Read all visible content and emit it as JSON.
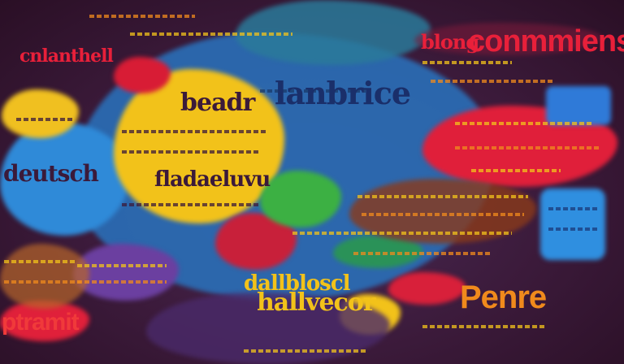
{
  "words": {
    "top_right": "conmmiens",
    "left_upper": "cnlanthell",
    "center_left": "fladaeluvu",
    "bottom_center": "hallvecor",
    "bottom_right": "Penre",
    "bottom_left": "ptramit",
    "center_top": "lanbrice",
    "center_upper": "beadr",
    "top_mid": "blong",
    "mid": "dallbloscl"
  },
  "colors": {
    "background": "#3b1a3a",
    "blue": "#2f7fc8",
    "yellow": "#f2c21a",
    "red": "#e0203a",
    "green": "#3cb043",
    "orange": "#f08a1c",
    "purple": "#6b3fa0"
  }
}
